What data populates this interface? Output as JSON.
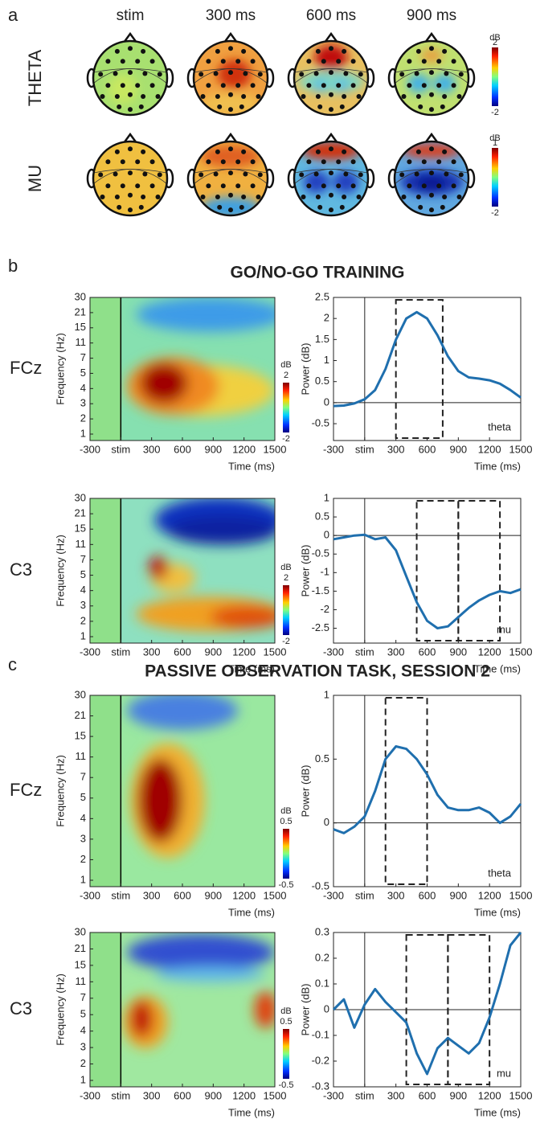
{
  "topo": {
    "label": "a",
    "times": [
      "stim",
      "300 ms",
      "600 ms",
      "900 ms"
    ],
    "rows": [
      {
        "label": "THETA",
        "colorbar": {
          "label": "dB",
          "ticks": [
            2,
            -2
          ]
        }
      },
      {
        "label": "MU",
        "colorbar": {
          "label": "dB",
          "ticks": [
            1,
            -2
          ]
        }
      }
    ]
  },
  "sections": [
    {
      "label": "b",
      "title": "GO/NO-GO TRAINING"
    },
    {
      "label": "c",
      "title": "PASSIVE OBSERVATION TASK, SESSION 2"
    }
  ],
  "chart_data": [
    {
      "type": "heatmap",
      "row_label": "FCz",
      "ylabel": "Frequency (Hz)",
      "xlabel": "Time (ms)",
      "yticks": [
        1,
        2,
        3,
        4,
        5,
        7,
        11,
        15,
        21,
        30
      ],
      "xlim": [
        -300,
        1500
      ],
      "xticks": [
        -300,
        {
          "value": 0,
          "label": "stim"
        },
        300,
        600,
        900,
        1200,
        1500
      ],
      "colorbar": {
        "label": "dB",
        "ticks": [
          2,
          -2
        ]
      }
    },
    {
      "type": "line",
      "ylabel": "Power (dB)",
      "xlabel": "Time (ms)",
      "annotation": "theta",
      "color": "#1f6fae",
      "x": [
        -300,
        -200,
        -100,
        0,
        100,
        200,
        300,
        400,
        500,
        600,
        700,
        800,
        900,
        1000,
        1100,
        1200,
        1300,
        1400,
        1500
      ],
      "values": [
        -0.08,
        -0.07,
        -0.02,
        0.08,
        0.3,
        0.8,
        1.5,
        2.0,
        2.15,
        2.0,
        1.6,
        1.1,
        0.75,
        0.6,
        0.57,
        0.53,
        0.45,
        0.3,
        0.12
      ],
      "xlim": [
        -300,
        1500
      ],
      "ylim": [
        -0.9,
        2.5
      ],
      "xticks": [
        -300,
        {
          "value": 0,
          "label": "stim"
        },
        300,
        600,
        900,
        1200,
        1500
      ],
      "yticks": [
        2.5,
        2,
        1.5,
        1,
        0.5,
        0,
        -0.5
      ],
      "windows": [
        [
          300,
          750
        ]
      ]
    },
    {
      "type": "heatmap",
      "row_label": "C3",
      "ylabel": "Frequency (Hz)",
      "xlabel": "Time (ms)",
      "yticks": [
        1,
        2,
        3,
        4,
        5,
        7,
        11,
        15,
        21,
        30
      ],
      "xlim": [
        -300,
        1500
      ],
      "xticks": [
        -300,
        {
          "value": 0,
          "label": "stim"
        },
        300,
        600,
        900,
        1200,
        1500
      ],
      "colorbar": {
        "label": "dB",
        "ticks": [
          2,
          -2
        ]
      }
    },
    {
      "type": "line",
      "ylabel": "Power (dB)",
      "xlabel": "Time (ms)",
      "annotation": "mu",
      "color": "#1f6fae",
      "x": [
        -300,
        -200,
        -100,
        0,
        100,
        200,
        300,
        400,
        500,
        600,
        700,
        800,
        900,
        1000,
        1100,
        1200,
        1300,
        1400,
        1500
      ],
      "values": [
        -0.1,
        -0.05,
        0.0,
        0.02,
        -0.1,
        -0.05,
        -0.4,
        -1.1,
        -1.8,
        -2.3,
        -2.5,
        -2.45,
        -2.2,
        -1.95,
        -1.75,
        -1.6,
        -1.5,
        -1.55,
        -1.45
      ],
      "xlim": [
        -300,
        1500
      ],
      "ylim": [
        -2.9,
        1
      ],
      "xticks": [
        -300,
        {
          "value": 0,
          "label": "stim"
        },
        300,
        600,
        900,
        1200,
        1500
      ],
      "yticks": [
        1,
        0.5,
        0,
        -0.5,
        -1,
        -1.5,
        -2,
        -2.5
      ],
      "windows": [
        [
          500,
          900
        ],
        [
          900,
          1300
        ]
      ]
    },
    {
      "type": "heatmap",
      "row_label": "FCz",
      "ylabel": "Frequency (Hz)",
      "xlabel": "Time (ms)",
      "yticks": [
        1,
        2,
        3,
        4,
        5,
        7,
        11,
        15,
        21,
        30
      ],
      "xlim": [
        -300,
        1500
      ],
      "xticks": [
        -300,
        {
          "value": 0,
          "label": "stim"
        },
        300,
        600,
        900,
        1200,
        1500
      ],
      "colorbar": {
        "label": "dB",
        "ticks": [
          0.5,
          -0.5
        ]
      }
    },
    {
      "type": "line",
      "ylabel": "Power (dB)",
      "xlabel": "Time (ms)",
      "annotation": "theta",
      "color": "#1f6fae",
      "x": [
        -300,
        -200,
        -100,
        0,
        100,
        200,
        300,
        400,
        500,
        600,
        700,
        800,
        900,
        1000,
        1100,
        1200,
        1300,
        1400,
        1500
      ],
      "values": [
        -0.05,
        -0.08,
        -0.03,
        0.05,
        0.25,
        0.5,
        0.6,
        0.58,
        0.5,
        0.38,
        0.22,
        0.12,
        0.1,
        0.1,
        0.12,
        0.08,
        0.0,
        0.05,
        0.15
      ],
      "xlim": [
        -300,
        1500
      ],
      "ylim": [
        -0.5,
        1
      ],
      "xticks": [
        -300,
        {
          "value": 0,
          "label": "stim"
        },
        300,
        600,
        900,
        1200,
        1500
      ],
      "yticks": [
        1,
        0.5,
        0,
        -0.5
      ],
      "windows": [
        [
          200,
          600
        ]
      ]
    },
    {
      "type": "heatmap",
      "row_label": "C3",
      "ylabel": "Frequency (Hz)",
      "xlabel": "Time (ms)",
      "yticks": [
        1,
        2,
        3,
        4,
        5,
        7,
        11,
        15,
        21,
        30
      ],
      "xlim": [
        -300,
        1500
      ],
      "xticks": [
        -300,
        {
          "value": 0,
          "label": "stim"
        },
        300,
        600,
        900,
        1200,
        1500
      ],
      "colorbar": {
        "label": "dB",
        "ticks": [
          0.5,
          -0.5
        ]
      }
    },
    {
      "type": "line",
      "ylabel": "Power (dB)",
      "xlabel": "Time (ms)",
      "annotation": "mu",
      "color": "#1f6fae",
      "x": [
        -300,
        -200,
        -100,
        0,
        100,
        200,
        300,
        400,
        500,
        600,
        700,
        800,
        900,
        1000,
        1100,
        1200,
        1300,
        1400,
        1500
      ],
      "values": [
        0.0,
        0.04,
        -0.07,
        0.02,
        0.08,
        0.03,
        -0.01,
        -0.05,
        -0.17,
        -0.25,
        -0.15,
        -0.11,
        -0.14,
        -0.17,
        -0.13,
        -0.03,
        0.1,
        0.25,
        0.3
      ],
      "xlim": [
        -300,
        1500
      ],
      "ylim": [
        -0.3,
        0.3
      ],
      "xticks": [
        -300,
        {
          "value": 0,
          "label": "stim"
        },
        300,
        600,
        900,
        1200,
        1500
      ],
      "yticks": [
        0.3,
        0.2,
        0.1,
        0,
        -0.1,
        -0.2,
        -0.3
      ],
      "windows": [
        [
          400,
          800
        ],
        [
          800,
          1200
        ]
      ]
    }
  ]
}
